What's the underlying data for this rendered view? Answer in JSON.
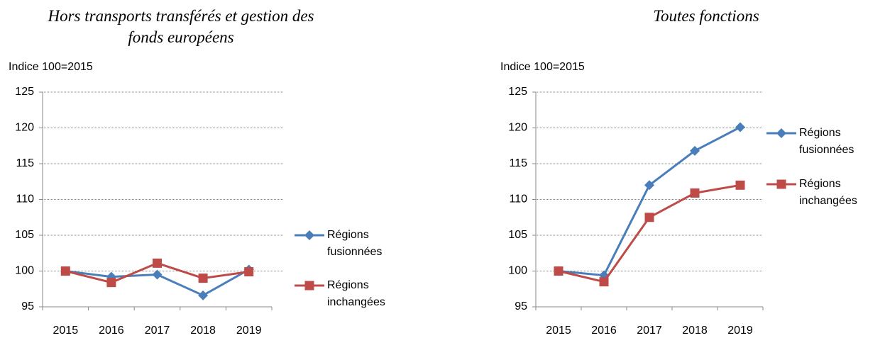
{
  "chart_data": [
    {
      "type": "line",
      "title": "Hors transports transférés et gestion des fonds européens",
      "y_label": "Indice 100=2015",
      "categories": [
        "2015",
        "2016",
        "2017",
        "2018",
        "2019"
      ],
      "series": [
        {
          "name": "Régions fusionnées",
          "color": "#4a7ebb",
          "marker": "diamond",
          "values": [
            100,
            99.2,
            99.5,
            96.6,
            100.2
          ]
        },
        {
          "name": "Régions inchangées",
          "color": "#be4b48",
          "marker": "square",
          "values": [
            100,
            98.4,
            101.1,
            99.0,
            99.9
          ]
        }
      ],
      "ylim": [
        95,
        125
      ],
      "yticks": [
        95,
        100,
        105,
        110,
        115,
        120,
        125
      ],
      "grid": true
    },
    {
      "type": "line",
      "title": "Toutes fonctions",
      "y_label": "Indice 100=2015",
      "categories": [
        "2015",
        "2016",
        "2017",
        "2018",
        "2019"
      ],
      "series": [
        {
          "name": "Régions fusionnées",
          "color": "#4a7ebb",
          "marker": "diamond",
          "values": [
            100,
            99.4,
            112.0,
            116.8,
            120.1
          ]
        },
        {
          "name": "Régions inchangées",
          "color": "#be4b48",
          "marker": "square",
          "values": [
            100,
            98.5,
            107.5,
            110.9,
            112.0
          ]
        }
      ],
      "ylim": [
        95,
        125
      ],
      "yticks": [
        95,
        100,
        105,
        110,
        115,
        120,
        125
      ],
      "grid": true
    }
  ]
}
